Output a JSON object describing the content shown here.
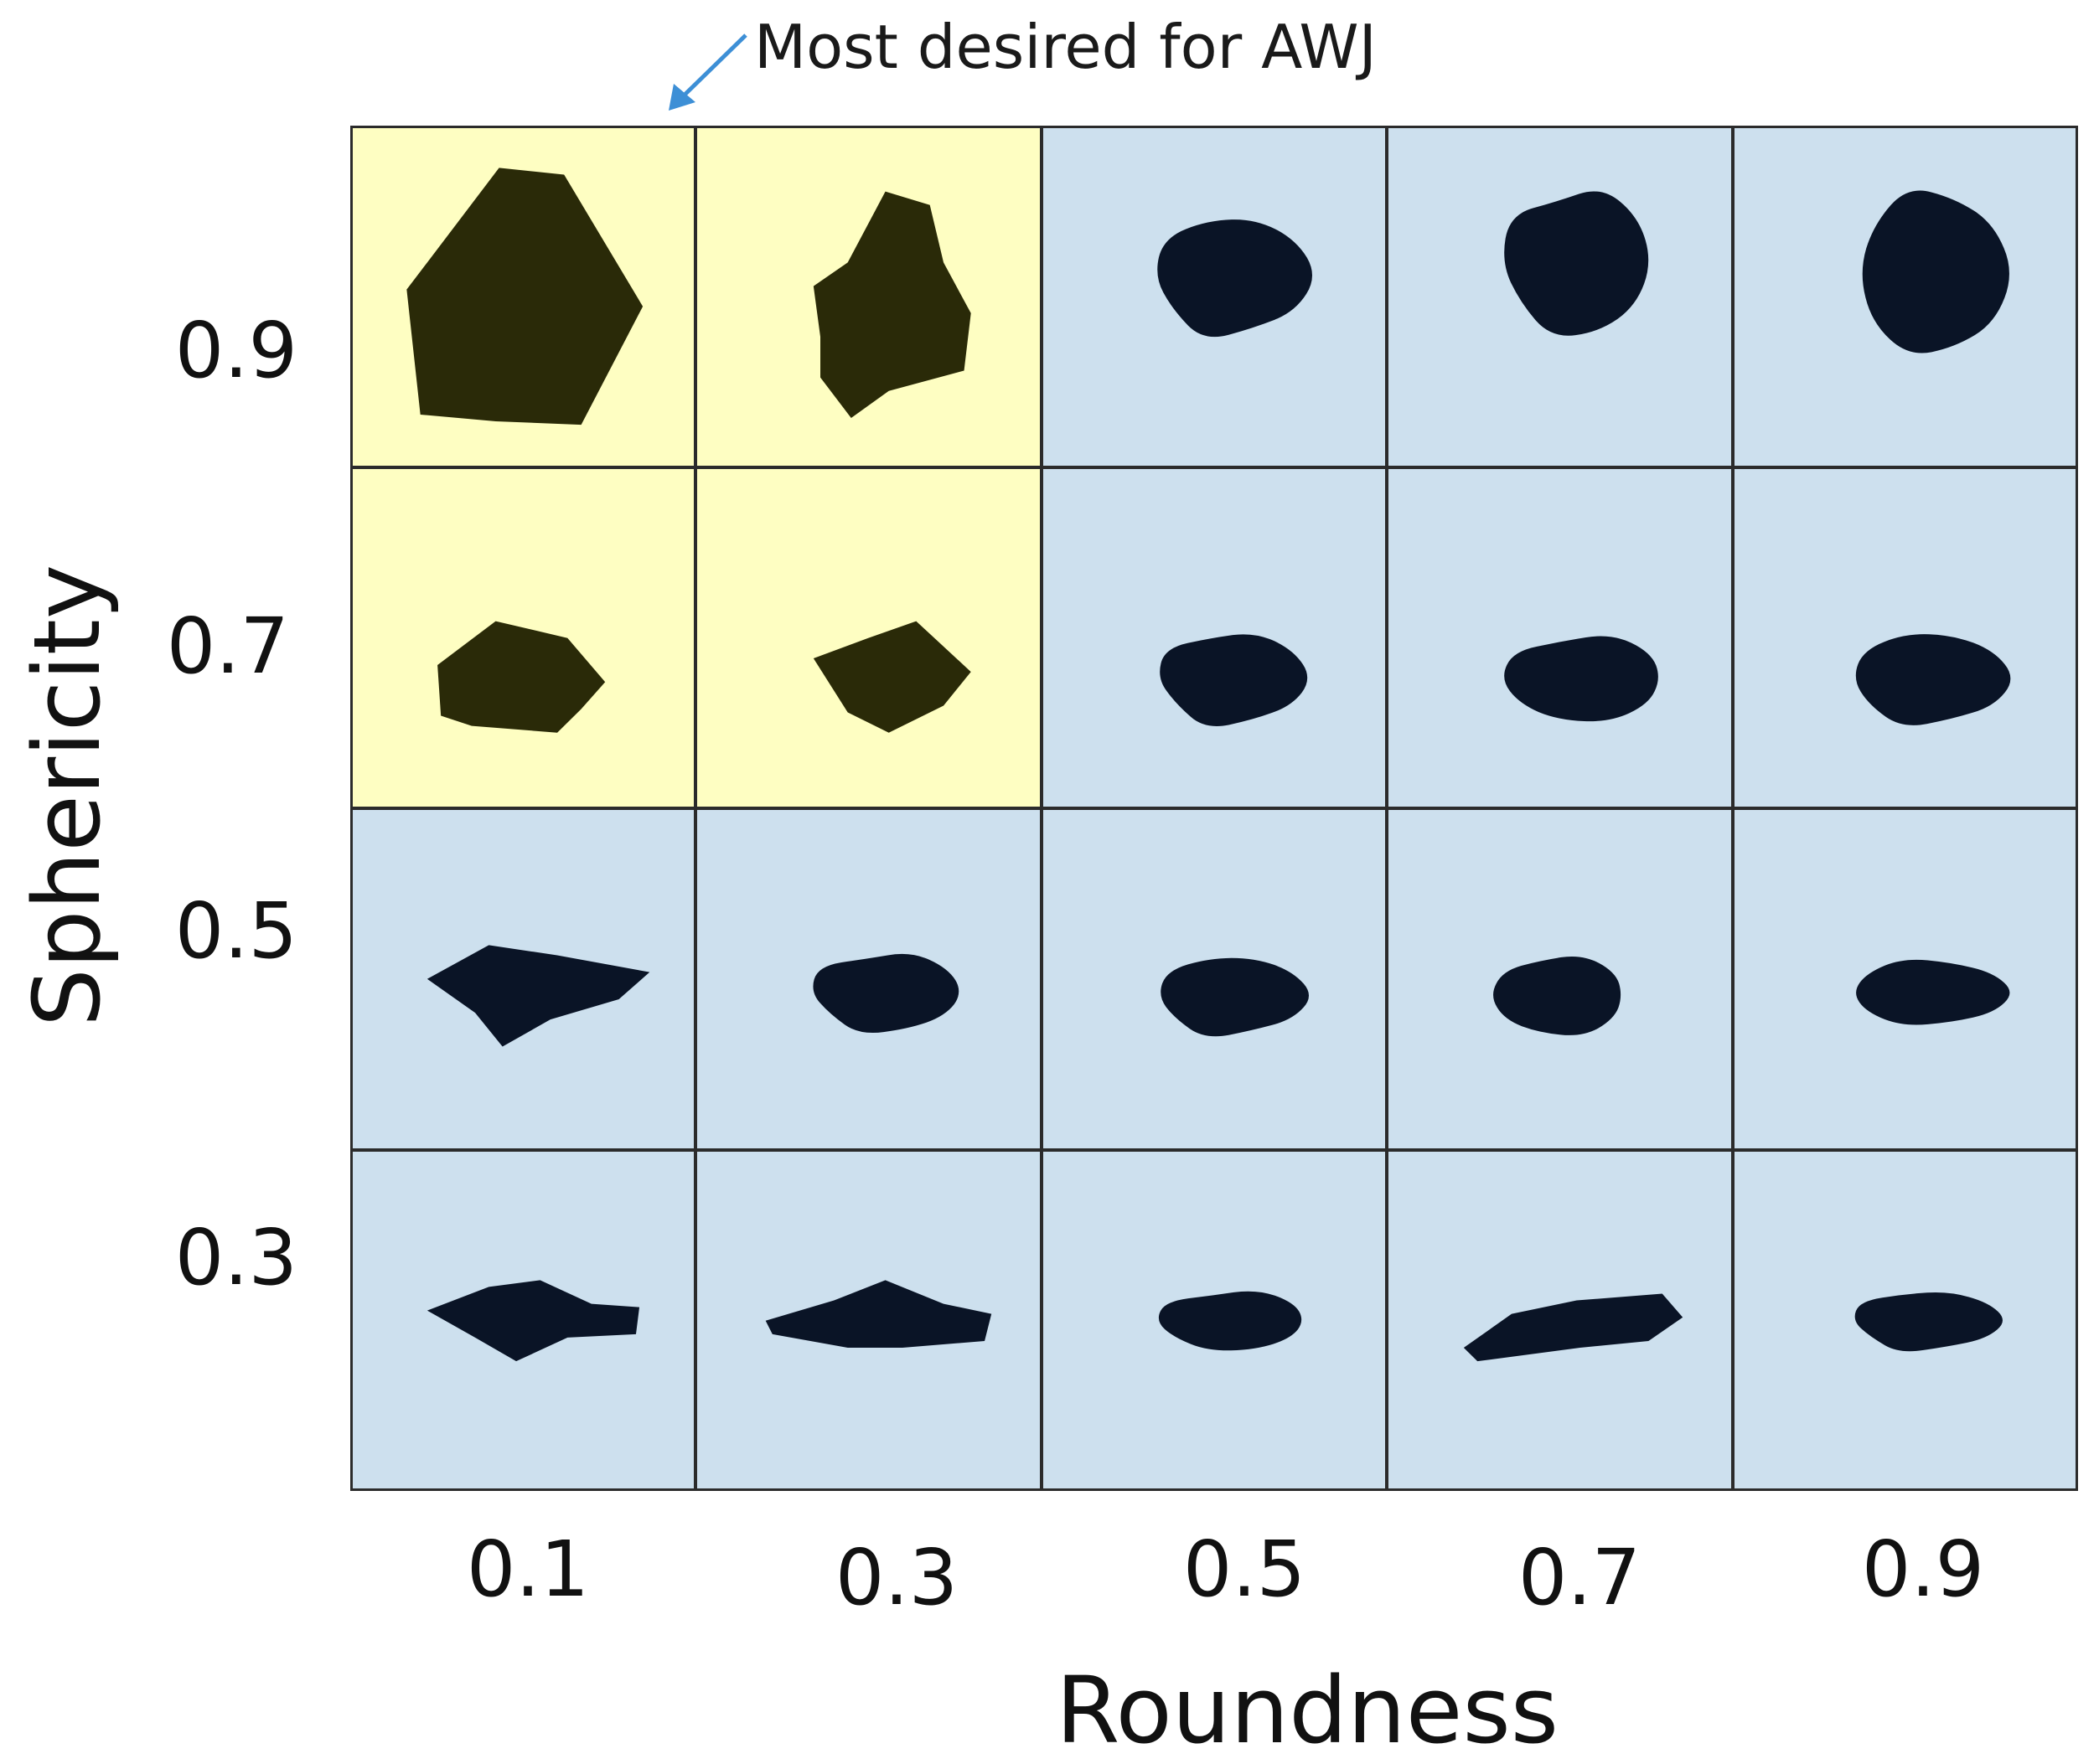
{
  "annotation": {
    "text": "Most desired for AWJ",
    "arrow_color": "#3d8fd6"
  },
  "axes": {
    "y_title": "Sphericity",
    "x_title": "Roundness",
    "y_ticks": [
      "0.9",
      "0.7",
      "0.5",
      "0.3"
    ],
    "x_ticks": [
      "0.1",
      "0.3",
      "0.5",
      "0.7",
      "0.9"
    ]
  },
  "colors": {
    "highlight_fill": "#fefec2",
    "normal_fill": "#cde0ee",
    "highlight_shape": "#2a2a08",
    "normal_shape": "#0a1426",
    "grid_line": "#2b2b2b"
  },
  "highlighted_cells": [
    {
      "sphericity": "0.9",
      "roundness": "0.1"
    },
    {
      "sphericity": "0.9",
      "roundness": "0.3"
    },
    {
      "sphericity": "0.7",
      "roundness": "0.1"
    },
    {
      "sphericity": "0.7",
      "roundness": "0.3"
    }
  ]
}
